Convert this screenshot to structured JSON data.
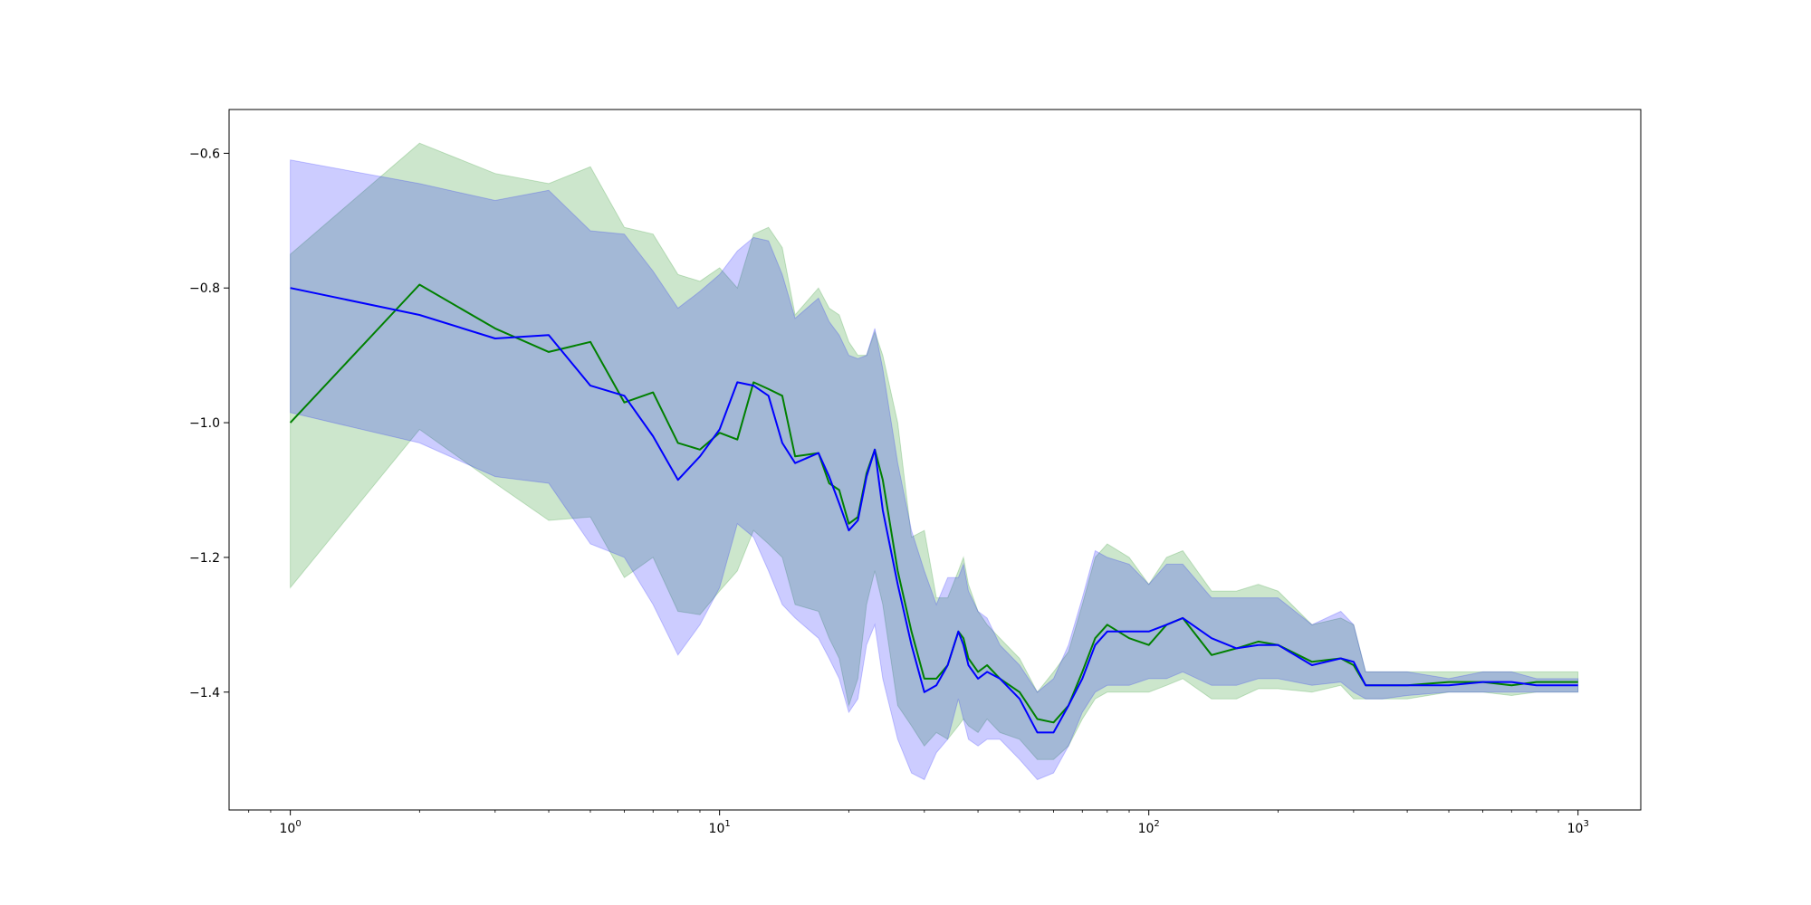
{
  "chart_data": {
    "type": "line",
    "x_scale": "log",
    "xlim": [
      0.72,
      1400
    ],
    "ylim": [
      -1.575,
      -0.535
    ],
    "grid": false,
    "legend": "none",
    "x_ticks": [
      {
        "value": 1,
        "base": "10",
        "exp": "0"
      },
      {
        "value": 10,
        "base": "10",
        "exp": "1"
      },
      {
        "value": 100,
        "base": "10",
        "exp": "2"
      },
      {
        "value": 1000,
        "base": "10",
        "exp": "3"
      }
    ],
    "y_ticks": [
      {
        "value": -0.6,
        "label": "−0.6"
      },
      {
        "value": -0.8,
        "label": "−0.8"
      },
      {
        "value": -1.0,
        "label": "−1.0"
      },
      {
        "value": -1.2,
        "label": "−1.2"
      },
      {
        "value": -1.4,
        "label": "−1.4"
      }
    ],
    "series": [
      {
        "color": "#008000",
        "band_color": "#008000",
        "band_opacity": 0.2,
        "x": [
          1,
          2,
          3,
          4,
          5,
          6,
          7,
          8,
          9,
          10,
          11,
          12,
          13,
          14,
          15,
          17,
          18,
          19,
          20,
          21,
          22,
          23,
          24,
          26,
          28,
          30,
          32,
          34,
          36,
          37,
          38,
          40,
          42,
          45,
          50,
          55,
          60,
          65,
          70,
          75,
          80,
          90,
          100,
          110,
          120,
          140,
          160,
          180,
          200,
          240,
          280,
          300,
          320,
          350,
          400,
          500,
          600,
          700,
          800,
          1000
        ],
        "y": [
          -1.0,
          -0.795,
          -0.86,
          -0.895,
          -0.88,
          -0.97,
          -0.955,
          -1.03,
          -1.04,
          -1.015,
          -1.025,
          -0.94,
          -0.95,
          -0.96,
          -1.05,
          -1.045,
          -1.09,
          -1.1,
          -1.15,
          -1.14,
          -1.075,
          -1.04,
          -1.085,
          -1.22,
          -1.31,
          -1.38,
          -1.38,
          -1.36,
          -1.31,
          -1.32,
          -1.35,
          -1.37,
          -1.36,
          -1.38,
          -1.4,
          -1.44,
          -1.445,
          -1.42,
          -1.37,
          -1.32,
          -1.3,
          -1.32,
          -1.33,
          -1.3,
          -1.29,
          -1.345,
          -1.335,
          -1.325,
          -1.33,
          -1.355,
          -1.35,
          -1.36,
          -1.39,
          -1.39,
          -1.39,
          -1.385,
          -1.385,
          -1.39,
          -1.385,
          -1.385
        ],
        "lower": [
          -1.245,
          -1.01,
          -1.09,
          -1.145,
          -1.14,
          -1.23,
          -1.2,
          -1.28,
          -1.285,
          -1.25,
          -1.22,
          -1.16,
          -1.18,
          -1.2,
          -1.27,
          -1.28,
          -1.32,
          -1.35,
          -1.42,
          -1.38,
          -1.27,
          -1.22,
          -1.27,
          -1.42,
          -1.45,
          -1.48,
          -1.46,
          -1.47,
          -1.45,
          -1.44,
          -1.45,
          -1.46,
          -1.44,
          -1.46,
          -1.47,
          -1.5,
          -1.5,
          -1.48,
          -1.44,
          -1.41,
          -1.4,
          -1.4,
          -1.4,
          -1.39,
          -1.38,
          -1.41,
          -1.41,
          -1.395,
          -1.395,
          -1.4,
          -1.39,
          -1.41,
          -1.41,
          -1.41,
          -1.41,
          -1.4,
          -1.4,
          -1.405,
          -1.4,
          -1.4
        ],
        "upper": [
          -0.75,
          -0.585,
          -0.63,
          -0.645,
          -0.62,
          -0.71,
          -0.72,
          -0.78,
          -0.79,
          -0.77,
          -0.8,
          -0.72,
          -0.71,
          -0.74,
          -0.84,
          -0.8,
          -0.83,
          -0.84,
          -0.88,
          -0.9,
          -0.9,
          -0.865,
          -0.9,
          -1.0,
          -1.17,
          -1.16,
          -1.26,
          -1.26,
          -1.22,
          -1.2,
          -1.24,
          -1.28,
          -1.3,
          -1.32,
          -1.35,
          -1.4,
          -1.37,
          -1.34,
          -1.27,
          -1.2,
          -1.18,
          -1.2,
          -1.24,
          -1.2,
          -1.19,
          -1.25,
          -1.25,
          -1.24,
          -1.25,
          -1.3,
          -1.29,
          -1.3,
          -1.37,
          -1.37,
          -1.37,
          -1.37,
          -1.37,
          -1.37,
          -1.37,
          -1.37
        ]
      },
      {
        "color": "#0000ff",
        "band_color": "#0000ff",
        "band_opacity": 0.2,
        "x": [
          1,
          2,
          3,
          4,
          5,
          6,
          7,
          8,
          9,
          10,
          11,
          12,
          13,
          14,
          15,
          17,
          18,
          19,
          20,
          21,
          22,
          23,
          24,
          26,
          28,
          30,
          32,
          34,
          36,
          37,
          38,
          40,
          42,
          45,
          50,
          55,
          60,
          65,
          70,
          75,
          80,
          90,
          100,
          110,
          120,
          140,
          160,
          180,
          200,
          240,
          280,
          300,
          320,
          350,
          400,
          500,
          600,
          700,
          800,
          1000
        ],
        "y": [
          -0.8,
          -0.84,
          -0.875,
          -0.87,
          -0.945,
          -0.96,
          -1.02,
          -1.085,
          -1.05,
          -1.01,
          -0.94,
          -0.945,
          -0.96,
          -1.03,
          -1.06,
          -1.045,
          -1.08,
          -1.12,
          -1.16,
          -1.145,
          -1.08,
          -1.04,
          -1.13,
          -1.24,
          -1.33,
          -1.4,
          -1.39,
          -1.36,
          -1.31,
          -1.33,
          -1.36,
          -1.38,
          -1.37,
          -1.38,
          -1.41,
          -1.46,
          -1.46,
          -1.42,
          -1.38,
          -1.33,
          -1.31,
          -1.31,
          -1.31,
          -1.3,
          -1.29,
          -1.32,
          -1.335,
          -1.33,
          -1.33,
          -1.36,
          -1.35,
          -1.355,
          -1.39,
          -1.39,
          -1.39,
          -1.39,
          -1.385,
          -1.385,
          -1.39,
          -1.39
        ],
        "lower": [
          -0.985,
          -1.03,
          -1.08,
          -1.09,
          -1.18,
          -1.2,
          -1.27,
          -1.345,
          -1.3,
          -1.245,
          -1.15,
          -1.17,
          -1.22,
          -1.27,
          -1.29,
          -1.32,
          -1.35,
          -1.38,
          -1.43,
          -1.41,
          -1.33,
          -1.3,
          -1.38,
          -1.47,
          -1.52,
          -1.53,
          -1.49,
          -1.47,
          -1.41,
          -1.44,
          -1.47,
          -1.48,
          -1.47,
          -1.47,
          -1.5,
          -1.53,
          -1.52,
          -1.48,
          -1.43,
          -1.4,
          -1.39,
          -1.39,
          -1.38,
          -1.38,
          -1.37,
          -1.39,
          -1.39,
          -1.38,
          -1.38,
          -1.39,
          -1.385,
          -1.4,
          -1.41,
          -1.41,
          -1.405,
          -1.4,
          -1.4,
          -1.4,
          -1.4,
          -1.4
        ],
        "upper": [
          -0.61,
          -0.645,
          -0.67,
          -0.655,
          -0.715,
          -0.72,
          -0.775,
          -0.83,
          -0.805,
          -0.78,
          -0.745,
          -0.725,
          -0.73,
          -0.78,
          -0.845,
          -0.815,
          -0.85,
          -0.87,
          -0.9,
          -0.905,
          -0.9,
          -0.86,
          -0.92,
          -1.06,
          -1.16,
          -1.22,
          -1.27,
          -1.23,
          -1.23,
          -1.21,
          -1.25,
          -1.28,
          -1.29,
          -1.33,
          -1.36,
          -1.4,
          -1.38,
          -1.33,
          -1.26,
          -1.19,
          -1.2,
          -1.21,
          -1.24,
          -1.21,
          -1.21,
          -1.26,
          -1.26,
          -1.26,
          -1.26,
          -1.3,
          -1.28,
          -1.3,
          -1.37,
          -1.37,
          -1.37,
          -1.38,
          -1.37,
          -1.37,
          -1.38,
          -1.38
        ]
      }
    ]
  }
}
